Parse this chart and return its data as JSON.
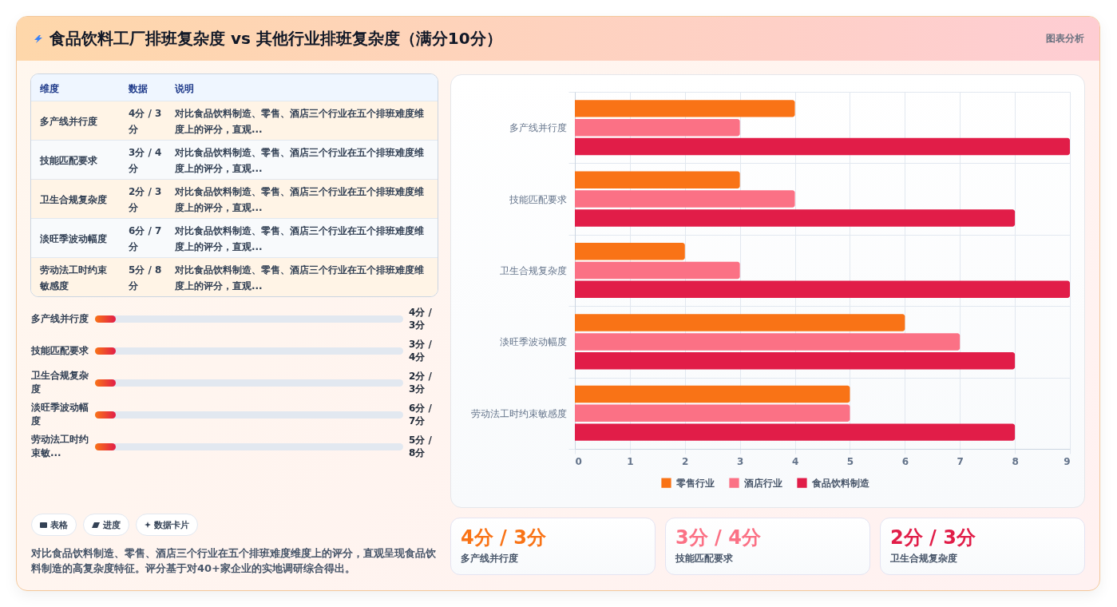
{
  "chart_data": [
    {
      "type": "other",
      "title": "食品饮料工厂排班复杂度 vs 其他行业排班复杂度（满分10分）",
      "annotations": [
        "图表分析"
      ]
    },
    {
      "type": "other",
      "categories": [
        "维度",
        "数据",
        "说明"
      ],
      "cell_labels": [
        [
          "多产线并行度",
          "4分 / 3分",
          "对比食品饮料制造、零售、酒店三个行业在五个排班难度维度上的评分，直观..."
        ],
        [
          "技能匹配要求",
          "3分 / 4分",
          "对比食品饮料制造、零售、酒店三个行业在五个排班难度维度上的评分，直观..."
        ],
        [
          "卫生合规复杂度",
          "2分 / 3分",
          "对比食品饮料制造、零售、酒店三个行业在五个排班难度维度上的评分，直观..."
        ],
        [
          "淡旺季波动幅度",
          "6分 / 7分",
          "对比食品饮料制造、零售、酒店三个行业在五个排班难度维度上的评分，直观..."
        ],
        [
          "劳动法工时约束敏感度",
          "5分 / 8分",
          "对比食品饮料制造、零售、酒店三个行业在五个排班难度维度上的评分，直观..."
        ]
      ]
    },
    {
      "type": "other",
      "categories": [
        "多产线并行度",
        "技能匹配要求",
        "卫生合规复杂度",
        "淡旺季波动幅度",
        "劳动法工时约束敏..."
      ],
      "value_labels": [
        "4分 / 3分",
        "3分 / 4分",
        "2分 / 3分",
        "6分 / 7分",
        "5分 / 8分"
      ]
    },
    {
      "type": "other",
      "categories": [
        "表格",
        "进度",
        "数据卡片"
      ],
      "annotations": [
        "对比食品饮料制造、零售、酒店三个行业在五个排班难度维度上的评分，直观呈现食品饮料制造的高复杂度特征。评分基于对40+家企业的实地调研综合得出。"
      ]
    },
    {
      "type": "bar",
      "orientation": "horizontal",
      "categories": [
        "多产线并行度",
        "技能匹配要求",
        "卫生合规复杂度",
        "淡旺季波动幅度",
        "劳动法工时约束敏感度"
      ],
      "series": [
        {
          "name": "零售行业",
          "color": "#f97316",
          "values": [
            4,
            3,
            2,
            6,
            5
          ]
        },
        {
          "name": "酒店行业",
          "color": "#fb7185",
          "values": [
            3,
            4,
            3,
            7,
            5
          ]
        },
        {
          "name": "食品饮料制造",
          "color": "#e11d48",
          "values": [
            9,
            8,
            9,
            8,
            8
          ]
        }
      ],
      "xlim": [
        0,
        9
      ],
      "xticks": [
        0,
        1,
        2,
        3,
        4,
        5,
        6,
        7,
        8,
        9
      ],
      "grid": true,
      "legend": "bottom"
    },
    {
      "type": "other",
      "categories": [
        "多产线并行度",
        "技能匹配要求",
        "卫生合规复杂度"
      ],
      "value_labels": [
        "4分 / 3分",
        "3分 / 4分",
        "2分 / 3分"
      ],
      "colors": [
        "#f97316",
        "#fb7185",
        "#e11d48"
      ]
    }
  ]
}
